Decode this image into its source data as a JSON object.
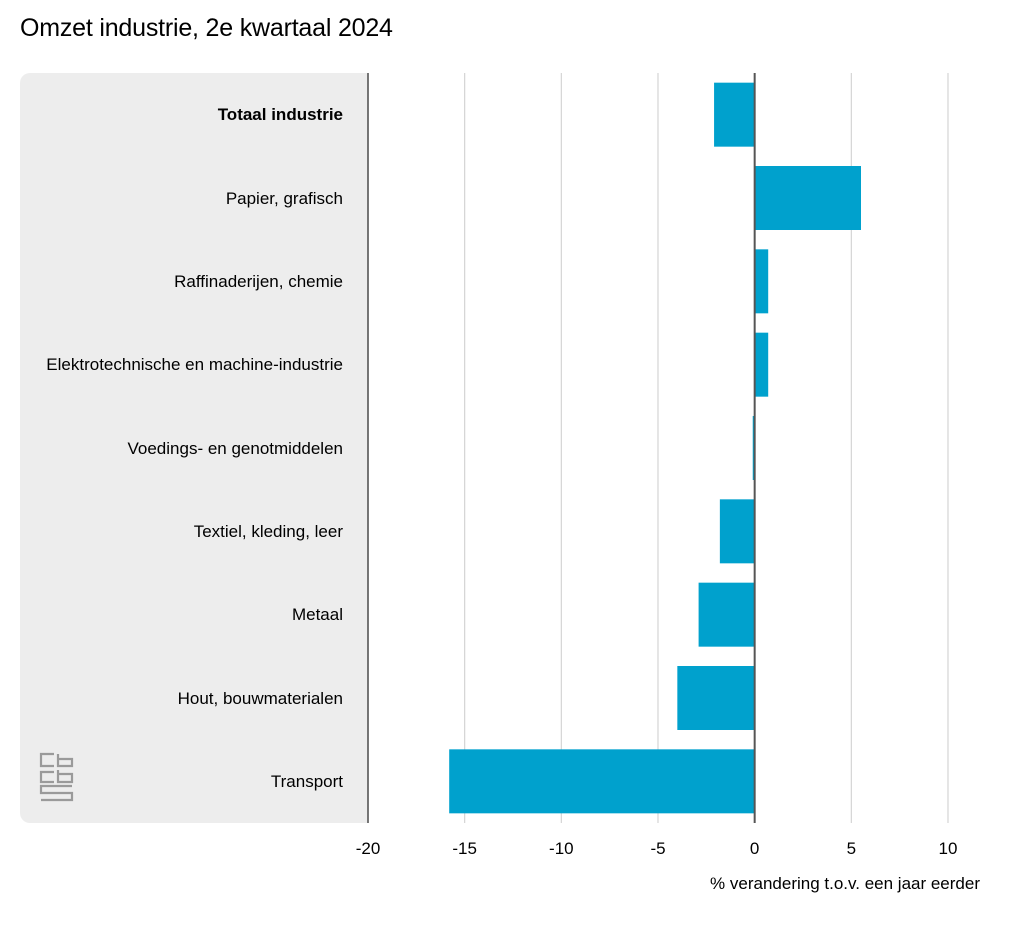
{
  "chart_data": {
    "type": "bar",
    "orientation": "horizontal",
    "title": "Omzet industrie, 2e kwartaal 2024",
    "xlabel": "% verandering t.o.v. een jaar eerder",
    "ylabel": "",
    "xlim": [
      -20,
      10
    ],
    "x_ticks": [
      "-20",
      "-15",
      "-10",
      "-5",
      "0",
      "5",
      "10"
    ],
    "grid": true,
    "bar_color": "#00a1cd",
    "categories": [
      "Totaal industrie",
      "Papier, grafisch",
      "Raffinaderijen, chemie",
      "Elektrotechnische en machine-industrie",
      "Voedings- en genotmiddelen",
      "Textiel, kleding, leer",
      "Metaal",
      "Hout, bouwmaterialen",
      "Transport"
    ],
    "highlighted_category": "Totaal industrie",
    "values": [
      -2.1,
      5.5,
      0.7,
      0.7,
      -0.1,
      -1.8,
      -2.9,
      -4.0,
      -15.8
    ]
  },
  "logo": {
    "icon": "cbs-logo-icon",
    "color": "#9a9a9a"
  }
}
